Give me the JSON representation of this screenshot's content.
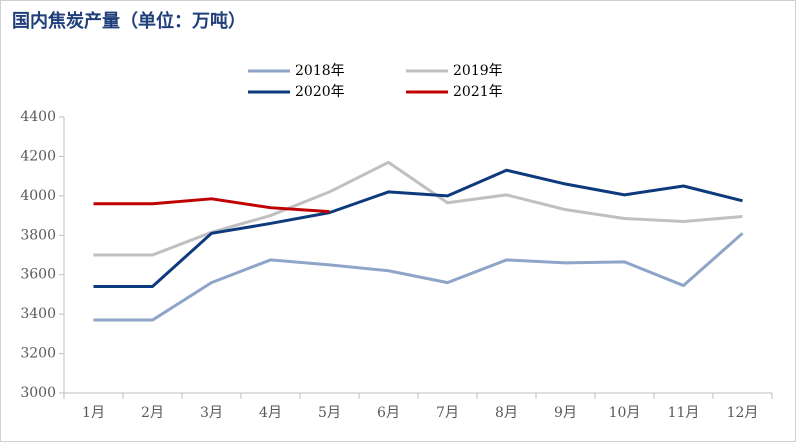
{
  "chart_data": {
    "type": "line",
    "title": "国内焦炭产量（单位：万吨）",
    "categories": [
      "1月",
      "2月",
      "3月",
      "4月",
      "5月",
      "6月",
      "7月",
      "8月",
      "9月",
      "10月",
      "11月",
      "12月"
    ],
    "series": [
      {
        "name": "2018年",
        "color": "#8ea5c8",
        "values": [
          3370,
          3370,
          3560,
          3675,
          3650,
          3620,
          3560,
          3675,
          3660,
          3665,
          3545,
          3810
        ]
      },
      {
        "name": "2019年",
        "color": "#c0c0c0",
        "values": [
          3700,
          3700,
          3815,
          3900,
          4020,
          4170,
          3965,
          4005,
          3930,
          3885,
          3870,
          3895
        ]
      },
      {
        "name": "2020年",
        "color": "#0d3a7d",
        "values": [
          3540,
          3540,
          3810,
          3860,
          3915,
          4020,
          4000,
          4130,
          4060,
          4005,
          4050,
          3975
        ]
      },
      {
        "name": "2021年",
        "color": "#c00000",
        "values": [
          3960,
          3960,
          3985,
          3940,
          3920,
          null,
          null,
          null,
          null,
          null,
          null,
          null
        ]
      }
    ],
    "ylim": [
      3000,
      4400
    ],
    "yticks": [
      3000,
      3200,
      3400,
      3600,
      3800,
      4000,
      4200,
      4400
    ],
    "grid": false
  }
}
